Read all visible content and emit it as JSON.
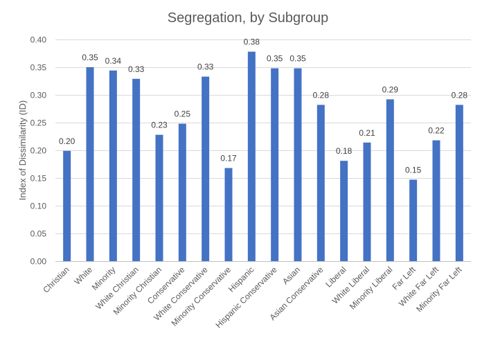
{
  "chart_data": {
    "type": "bar",
    "title": "Segregation, by Subgroup",
    "xlabel": "",
    "ylabel": "Index of Dissimilarity (ID)",
    "ylim": [
      0,
      0.4
    ],
    "yticks": [
      "0.00",
      "0.05",
      "0.10",
      "0.15",
      "0.20",
      "0.25",
      "0.30",
      "0.35",
      "0.40"
    ],
    "grid": true,
    "legend": "none",
    "bar_color": "#4472C4",
    "categories": [
      "Christian",
      "White",
      "Minority",
      "White Christian",
      "Minority Christian",
      "Conservative",
      "White Conservative",
      "Minority Conservative",
      "Hispanic",
      "Hispanic Conservative",
      "Asian",
      "Asian Conservative",
      "Liberal",
      "White Liberal",
      "Minority Liberal",
      "Far Left",
      "White Far Left",
      "Minority Far Left"
    ],
    "values": [
      0.199,
      0.35,
      0.344,
      0.329,
      0.228,
      0.248,
      0.333,
      0.168,
      0.378,
      0.348,
      0.348,
      0.282,
      0.181,
      0.214,
      0.292,
      0.147,
      0.218,
      0.282
    ],
    "data_labels": [
      "0.20",
      "0.35",
      "0.34",
      "0.33",
      "0.23",
      "0.25",
      "0.33",
      "0.17",
      "0.38",
      "0.35",
      "0.35",
      "0.28",
      "0.18",
      "0.21",
      "0.29",
      "0.15",
      "0.22",
      "0.28"
    ]
  }
}
